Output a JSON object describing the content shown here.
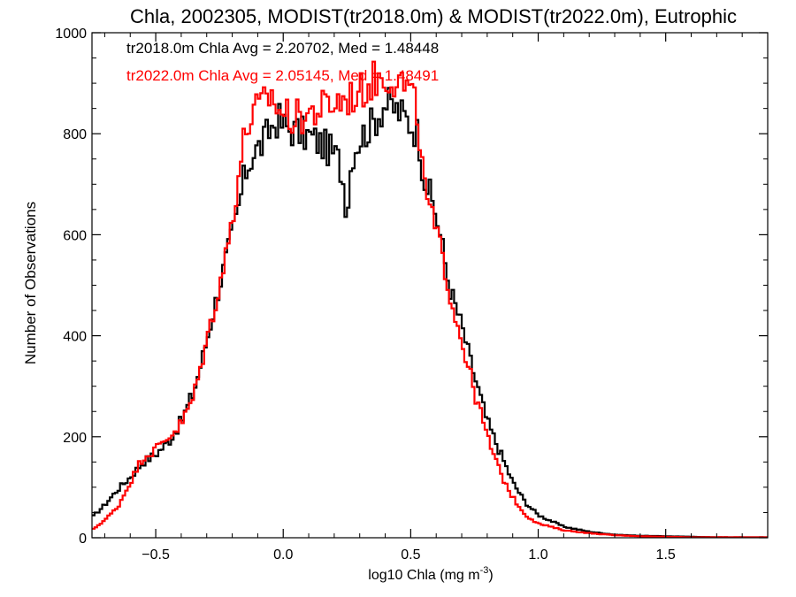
{
  "chart_data": {
    "type": "histogram-step",
    "title": "Chla, 2002305, MODIST(tr2018.0m) & MODIST(tr2022.0m), Eutrophic",
    "xlabel_main": "log10 Chla (mg m",
    "xlabel_exp": "-3",
    "xlabel_close": ")",
    "ylabel": "Number of Observations",
    "xlim": [
      -0.75,
      1.9
    ],
    "ylim": [
      0,
      1000
    ],
    "x_ticks": [
      -0.5,
      0.0,
      0.5,
      1.0,
      1.5
    ],
    "x_tick_labels": [
      "−0.5",
      "0.0",
      "0.5",
      "1.0",
      "1.5"
    ],
    "y_ticks": [
      0,
      200,
      400,
      600,
      800,
      1000
    ],
    "y_tick_labels": [
      "0",
      "200",
      "400",
      "600",
      "800",
      "1000"
    ],
    "legend": [
      {
        "text": "tr2018.0m Chla Avg = 2.20702, Med = 1.48448",
        "color": "#000000"
      },
      {
        "text": "tr2022.0m Chla Avg = 2.05145, Med = 1.48491",
        "color": "#ff0000"
      }
    ],
    "series": [
      {
        "color": "#000000",
        "points": [
          [
            -0.75,
            40
          ],
          [
            -0.7,
            65
          ],
          [
            -0.65,
            95
          ],
          [
            -0.6,
            120
          ],
          [
            -0.55,
            150
          ],
          [
            -0.5,
            165
          ],
          [
            -0.45,
            190
          ],
          [
            -0.4,
            230
          ],
          [
            -0.35,
            290
          ],
          [
            -0.3,
            390
          ],
          [
            -0.25,
            500
          ],
          [
            -0.22,
            560
          ],
          [
            -0.18,
            640
          ],
          [
            -0.15,
            720
          ],
          [
            -0.12,
            760
          ],
          [
            -0.08,
            780
          ],
          [
            -0.05,
            810
          ],
          [
            -0.02,
            830
          ],
          [
            0.0,
            815
          ],
          [
            0.05,
            805
          ],
          [
            0.1,
            795
          ],
          [
            0.15,
            780
          ],
          [
            0.2,
            760
          ],
          [
            0.22,
            745
          ],
          [
            0.24,
            690
          ],
          [
            0.25,
            640
          ],
          [
            0.27,
            760
          ],
          [
            0.3,
            790
          ],
          [
            0.35,
            820
          ],
          [
            0.4,
            860
          ],
          [
            0.45,
            845
          ],
          [
            0.5,
            820
          ],
          [
            0.53,
            800
          ],
          [
            0.55,
            720
          ],
          [
            0.6,
            640
          ],
          [
            0.63,
            560
          ],
          [
            0.65,
            500
          ],
          [
            0.7,
            420
          ],
          [
            0.75,
            320
          ],
          [
            0.8,
            230
          ],
          [
            0.85,
            170
          ],
          [
            0.9,
            110
          ],
          [
            0.95,
            70
          ],
          [
            1.0,
            45
          ],
          [
            1.1,
            22
          ],
          [
            1.2,
            12
          ],
          [
            1.3,
            6
          ],
          [
            1.4,
            4
          ],
          [
            1.5,
            3
          ],
          [
            1.6,
            2
          ],
          [
            1.7,
            1
          ],
          [
            1.9,
            1
          ]
        ]
      },
      {
        "color": "#ff0000",
        "points": [
          [
            -0.75,
            15
          ],
          [
            -0.7,
            35
          ],
          [
            -0.65,
            60
          ],
          [
            -0.6,
            110
          ],
          [
            -0.55,
            160
          ],
          [
            -0.5,
            175
          ],
          [
            -0.45,
            200
          ],
          [
            -0.4,
            225
          ],
          [
            -0.35,
            280
          ],
          [
            -0.3,
            390
          ],
          [
            -0.25,
            500
          ],
          [
            -0.22,
            570
          ],
          [
            -0.18,
            700
          ],
          [
            -0.15,
            800
          ],
          [
            -0.12,
            840
          ],
          [
            -0.08,
            855
          ],
          [
            -0.05,
            880
          ],
          [
            -0.02,
            850
          ],
          [
            0.0,
            840
          ],
          [
            0.05,
            830
          ],
          [
            0.1,
            840
          ],
          [
            0.15,
            850
          ],
          [
            0.2,
            860
          ],
          [
            0.25,
            870
          ],
          [
            0.3,
            880
          ],
          [
            0.35,
            905
          ],
          [
            0.4,
            915
          ],
          [
            0.45,
            910
          ],
          [
            0.5,
            880
          ],
          [
            0.53,
            830
          ],
          [
            0.55,
            700
          ],
          [
            0.6,
            600
          ],
          [
            0.63,
            550
          ],
          [
            0.65,
            490
          ],
          [
            0.7,
            390
          ],
          [
            0.75,
            290
          ],
          [
            0.8,
            200
          ],
          [
            0.85,
            130
          ],
          [
            0.9,
            80
          ],
          [
            0.95,
            45
          ],
          [
            1.0,
            28
          ],
          [
            1.1,
            15
          ],
          [
            1.2,
            9
          ],
          [
            1.3,
            5
          ],
          [
            1.4,
            3
          ],
          [
            1.5,
            2
          ],
          [
            1.6,
            1
          ],
          [
            1.7,
            1
          ],
          [
            1.9,
            1
          ]
        ]
      }
    ]
  }
}
